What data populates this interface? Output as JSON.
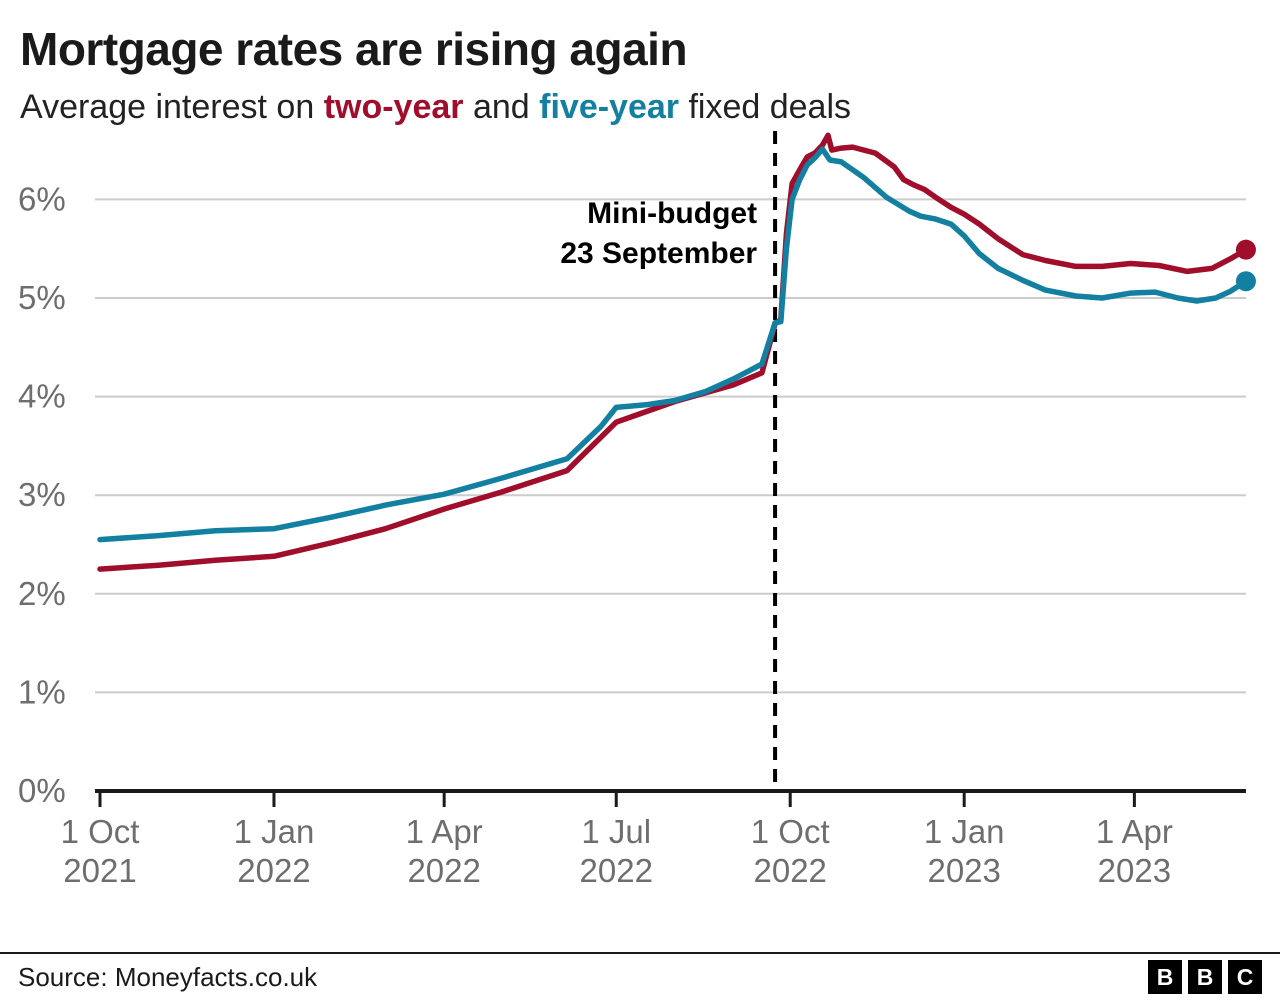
{
  "header": {
    "title": "Mortgage rates are rising again",
    "subtitle_prefix": "Average interest on ",
    "subtitle_two_year": "two-year",
    "subtitle_and": " and ",
    "subtitle_five_year": "five-year",
    "subtitle_suffix": " fixed deals"
  },
  "footer": {
    "source": "Source: Moneyfacts.co.uk",
    "logo_letters": [
      "B",
      "B",
      "C"
    ]
  },
  "colors": {
    "two_year": "#A00E2C",
    "five_year": "#1380A1",
    "grid": "#cccccc",
    "axis": "#1a1a1a",
    "tick_label": "#6e6e6e",
    "annotation": "#000000"
  },
  "chart_data": {
    "type": "line",
    "title": "Mortgage rates are rising again",
    "subtitle": "Average interest on two-year and five-year fixed deals",
    "x_unit": "days since 1 Oct 2021",
    "ylim": [
      0,
      6.8
    ],
    "grid": true,
    "y_ticks": [
      {
        "value": 0,
        "label": "0%"
      },
      {
        "value": 1,
        "label": "1%"
      },
      {
        "value": 2,
        "label": "2%"
      },
      {
        "value": 3,
        "label": "3%"
      },
      {
        "value": 4,
        "label": "4%"
      },
      {
        "value": 5,
        "label": "5%"
      },
      {
        "value": 6,
        "label": "6%"
      }
    ],
    "x_ticks": [
      {
        "day": 0,
        "label": [
          "1 Oct",
          "2021"
        ]
      },
      {
        "day": 92,
        "label": [
          "1 Jan",
          "2022"
        ]
      },
      {
        "day": 182,
        "label": [
          "1 Apr",
          "2022"
        ]
      },
      {
        "day": 273,
        "label": [
          "1 Jul",
          "2022"
        ]
      },
      {
        "day": 365,
        "label": [
          "1 Oct",
          "2022"
        ]
      },
      {
        "day": 457,
        "label": [
          "1 Jan",
          "2023"
        ]
      },
      {
        "day": 547,
        "label": [
          "1 Apr",
          "2023"
        ]
      }
    ],
    "annotation": {
      "label_lines": [
        "Mini-budget",
        "23 September"
      ],
      "day": 357,
      "style": "dashed-vertical"
    },
    "series": [
      {
        "name": "two-year",
        "color": "#A00E2C",
        "end_dot": true,
        "end_value": 5.49,
        "points": [
          [
            0,
            2.25
          ],
          [
            31,
            2.29
          ],
          [
            61,
            2.34
          ],
          [
            92,
            2.38
          ],
          [
            123,
            2.52
          ],
          [
            151,
            2.66
          ],
          [
            182,
            2.86
          ],
          [
            212,
            3.03
          ],
          [
            247,
            3.25
          ],
          [
            273,
            3.74
          ],
          [
            304,
            3.95
          ],
          [
            335,
            4.12
          ],
          [
            350,
            4.24
          ],
          [
            357,
            4.74
          ],
          [
            360,
            4.78
          ],
          [
            363,
            5.65
          ],
          [
            366,
            6.16
          ],
          [
            370,
            6.3
          ],
          [
            374,
            6.43
          ],
          [
            378,
            6.47
          ],
          [
            382,
            6.55
          ],
          [
            385,
            6.65
          ],
          [
            387,
            6.5
          ],
          [
            392,
            6.52
          ],
          [
            398,
            6.53
          ],
          [
            404,
            6.5
          ],
          [
            410,
            6.47
          ],
          [
            415,
            6.4
          ],
          [
            420,
            6.33
          ],
          [
            425,
            6.2
          ],
          [
            430,
            6.15
          ],
          [
            436,
            6.1
          ],
          [
            442,
            6.02
          ],
          [
            450,
            5.92
          ],
          [
            457,
            5.85
          ],
          [
            465,
            5.75
          ],
          [
            475,
            5.6
          ],
          [
            488,
            5.44
          ],
          [
            500,
            5.38
          ],
          [
            516,
            5.32
          ],
          [
            530,
            5.32
          ],
          [
            545,
            5.35
          ],
          [
            560,
            5.33
          ],
          [
            575,
            5.27
          ],
          [
            588,
            5.3
          ],
          [
            598,
            5.4
          ],
          [
            606,
            5.49
          ]
        ]
      },
      {
        "name": "five-year",
        "color": "#1380A1",
        "end_dot": true,
        "end_value": 5.17,
        "points": [
          [
            0,
            2.55
          ],
          [
            31,
            2.59
          ],
          [
            61,
            2.64
          ],
          [
            92,
            2.66
          ],
          [
            123,
            2.78
          ],
          [
            151,
            2.9
          ],
          [
            182,
            3.01
          ],
          [
            212,
            3.17
          ],
          [
            247,
            3.37
          ],
          [
            265,
            3.7
          ],
          [
            273,
            3.89
          ],
          [
            290,
            3.92
          ],
          [
            304,
            3.96
          ],
          [
            320,
            4.05
          ],
          [
            335,
            4.18
          ],
          [
            350,
            4.33
          ],
          [
            357,
            4.75
          ],
          [
            360,
            4.76
          ],
          [
            363,
            5.5
          ],
          [
            366,
            6.0
          ],
          [
            370,
            6.2
          ],
          [
            374,
            6.35
          ],
          [
            378,
            6.42
          ],
          [
            382,
            6.51
          ],
          [
            386,
            6.4
          ],
          [
            392,
            6.38
          ],
          [
            398,
            6.3
          ],
          [
            404,
            6.22
          ],
          [
            410,
            6.12
          ],
          [
            416,
            6.02
          ],
          [
            422,
            5.95
          ],
          [
            428,
            5.88
          ],
          [
            434,
            5.83
          ],
          [
            442,
            5.8
          ],
          [
            450,
            5.75
          ],
          [
            457,
            5.63
          ],
          [
            465,
            5.45
          ],
          [
            475,
            5.3
          ],
          [
            488,
            5.18
          ],
          [
            500,
            5.08
          ],
          [
            516,
            5.02
          ],
          [
            530,
            5.0
          ],
          [
            545,
            5.05
          ],
          [
            558,
            5.06
          ],
          [
            570,
            5.0
          ],
          [
            580,
            4.97
          ],
          [
            590,
            5.0
          ],
          [
            598,
            5.07
          ],
          [
            606,
            5.17
          ]
        ]
      }
    ]
  }
}
